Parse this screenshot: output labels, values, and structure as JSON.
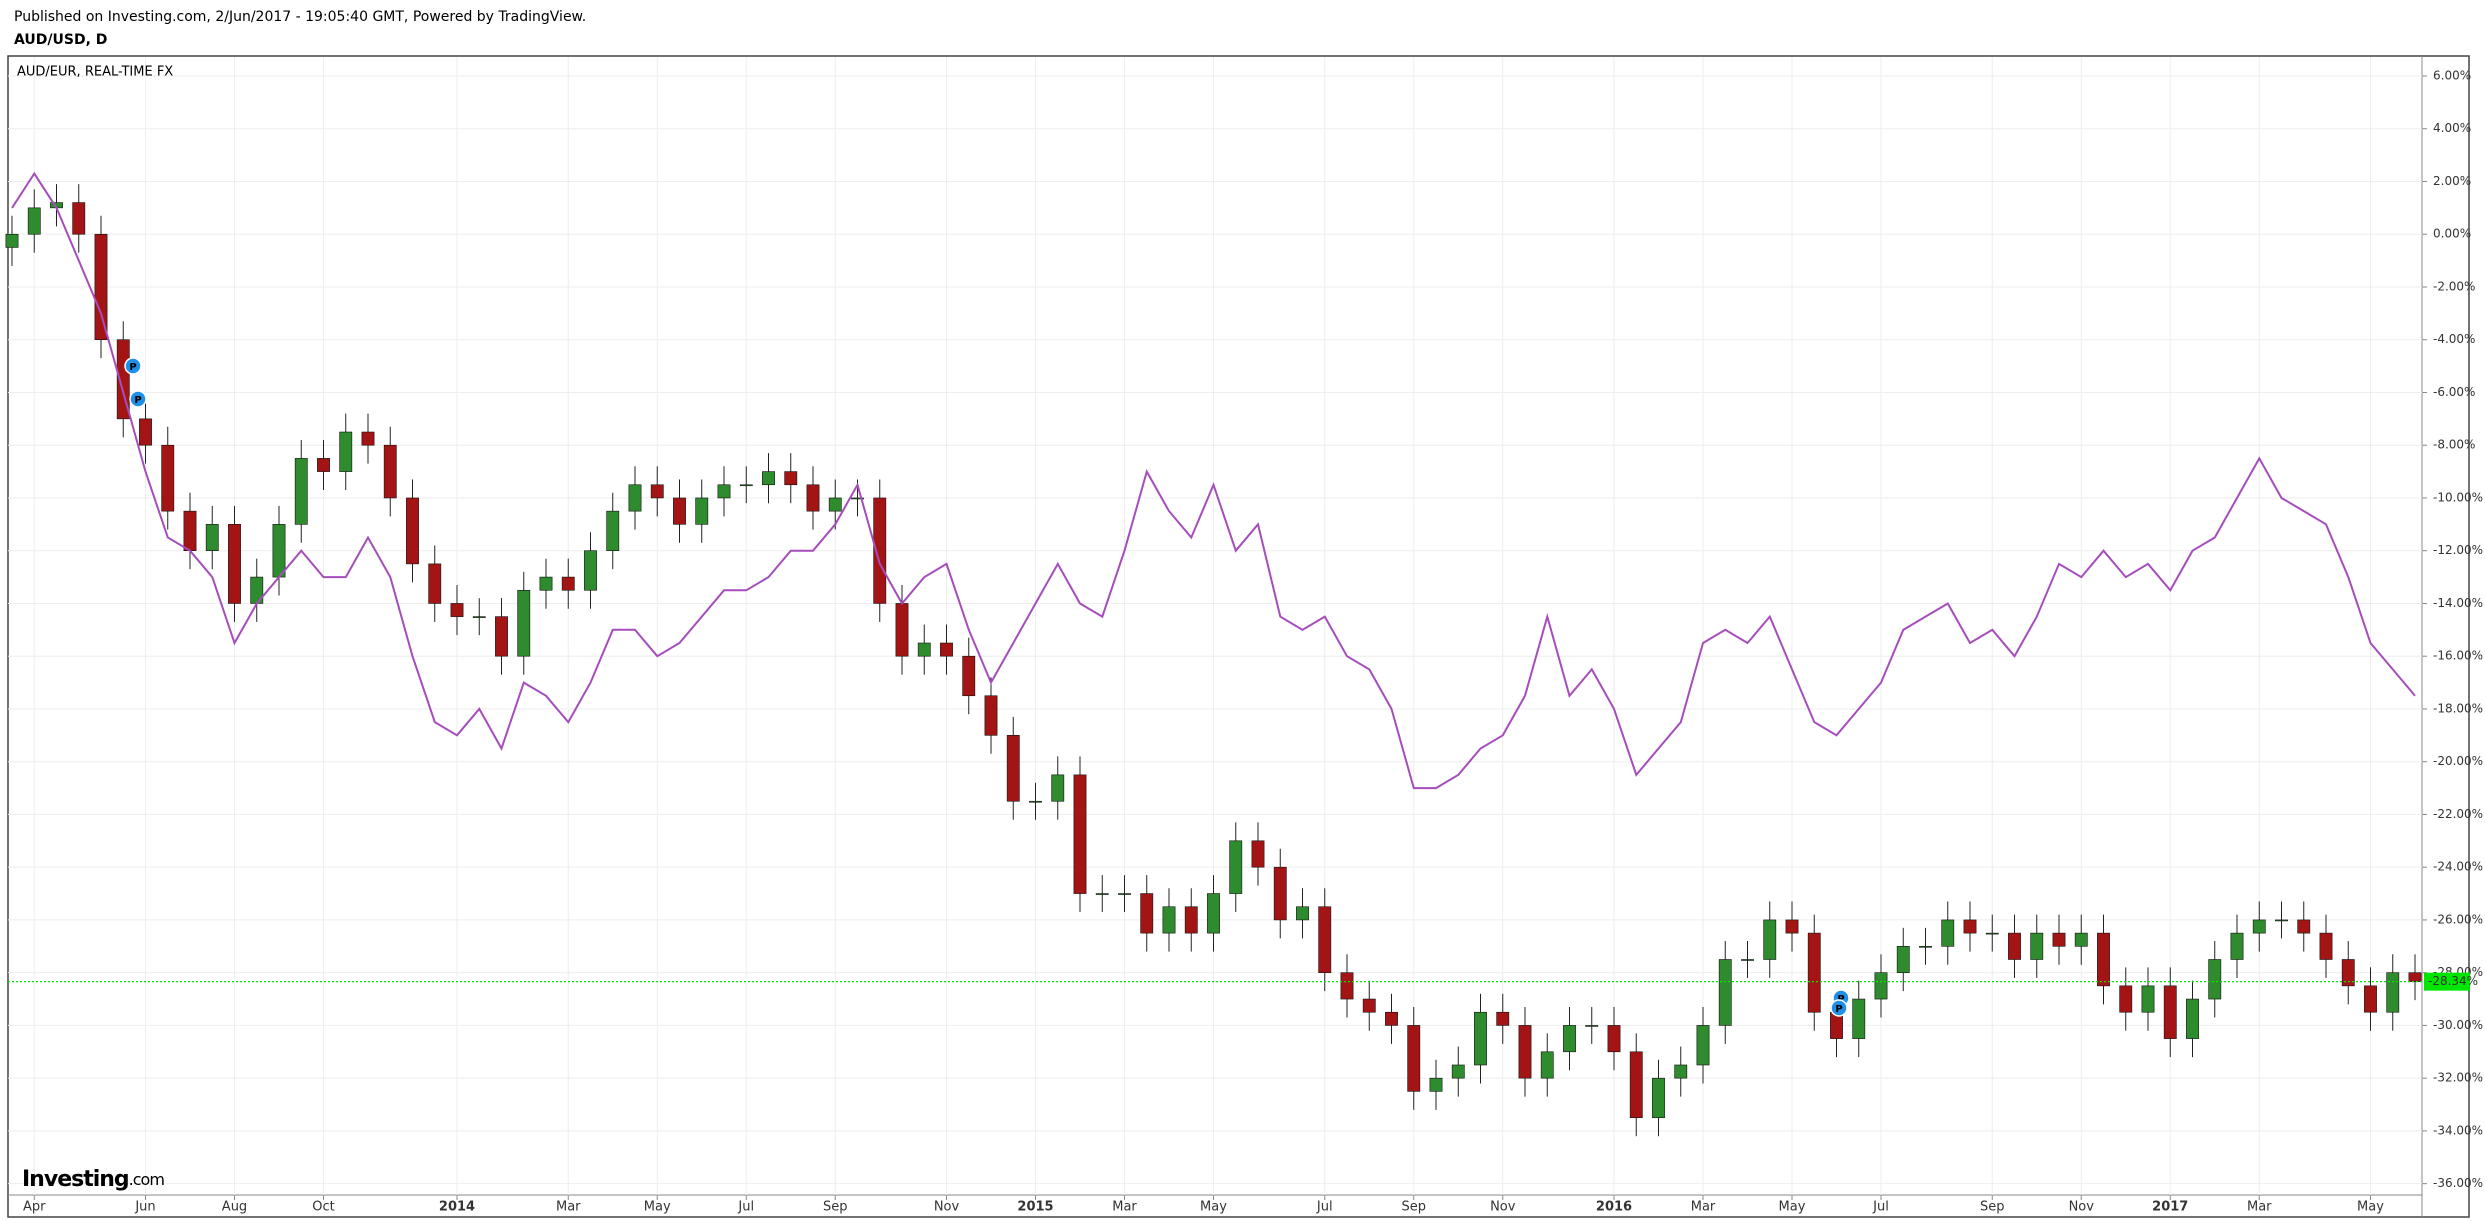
{
  "chart_data": {
    "type": "candlestick",
    "source": "Published on Investing.com, 2/Jun/2017 - 19:05:40 GMT, Powered by TradingView.",
    "title": "AUD/USD, D",
    "categories": [
      null,
      "Apr",
      null,
      null,
      null,
      null,
      "Jun",
      null,
      null,
      null,
      "Aug",
      null,
      null,
      null,
      "Oct",
      null,
      null,
      null,
      null,
      null,
      "2014",
      null,
      null,
      null,
      null,
      "Mar",
      null,
      null,
      null,
      "May",
      null,
      null,
      null,
      "Jul",
      null,
      null,
      null,
      "Sep",
      null,
      null,
      null,
      null,
      "Nov",
      null,
      null,
      null,
      "2015",
      null,
      null,
      null,
      "Mar",
      null,
      null,
      null,
      "May",
      null,
      null,
      null,
      null,
      "Jul",
      null,
      null,
      null,
      "Sep",
      null,
      null,
      null,
      "Nov",
      null,
      null,
      null,
      null,
      "2016",
      null,
      null,
      null,
      "Mar",
      null,
      null,
      null,
      "May",
      null,
      null,
      null,
      "Jul",
      null,
      null,
      null,
      null,
      "Sep",
      null,
      null,
      null,
      "Nov",
      null,
      null,
      null,
      "2017",
      null,
      null,
      null,
      "Mar",
      null,
      null,
      null,
      null,
      "May",
      null,
      null
    ],
    "candles": {
      "up_color": "#2e8b2e",
      "down_color": "#a31515",
      "wick_color": "#222222",
      "open": [
        -0.5,
        0,
        1,
        1.2,
        0,
        -4,
        -7,
        -8,
        -10.5,
        -12,
        -11,
        -14,
        -13,
        -11,
        -8.5,
        -9,
        -7.5,
        -8,
        -10,
        -12.5,
        -14,
        -14.5,
        -14.5,
        -16,
        -13.5,
        -13,
        -13.5,
        -12,
        -10.5,
        -9.5,
        -10,
        -11,
        -10,
        -9.5,
        -9.5,
        -9,
        -9.5,
        -10.5,
        -10,
        -10,
        -14,
        -16,
        -15.5,
        -16,
        -17.5,
        -19,
        -21.5,
        -21.5,
        -20.5,
        -25,
        -25,
        -25,
        -26.5,
        -25.5,
        -26.5,
        -25,
        -23,
        -24,
        -26,
        -25.5,
        -28,
        -29,
        -29.5,
        -30,
        -32.5,
        -32,
        -31.5,
        -29.5,
        -30,
        -32,
        -31,
        -30,
        -30,
        -31,
        -33.5,
        -32,
        -31.5,
        -30,
        -27.5,
        -27.5,
        -26,
        -26.5,
        -29.5,
        -30.5,
        -29,
        -28,
        -27,
        -27,
        -26,
        -26.5,
        -26.5,
        -27.5,
        -26.5,
        -27,
        -26.5,
        -28.5,
        -29.5,
        -28.5,
        -30.5,
        -29,
        -27.5,
        -26.5,
        -26,
        -26,
        -26.5,
        -27.5,
        -28.5,
        -29.5,
        -28
      ],
      "high": [
        0.7,
        1.7,
        1.9,
        1.9,
        0.7,
        -3.3,
        -6.3,
        -7.3,
        -9.8,
        -10.3,
        -10.3,
        -12.3,
        -10.3,
        -7.8,
        -7.8,
        -6.8,
        -6.8,
        -7.3,
        -9.3,
        -11.8,
        -13.3,
        -13.8,
        -13.8,
        -12.8,
        -12.3,
        -12.3,
        -11.3,
        -9.8,
        -8.8,
        -8.8,
        -9.3,
        -9.3,
        -8.8,
        -8.8,
        -8.3,
        -8.3,
        -8.8,
        -9.3,
        -9.3,
        -9.3,
        -13.3,
        -14.8,
        -14.8,
        -15.3,
        -16.8,
        -18.3,
        -20.8,
        -19.8,
        -19.8,
        -24.3,
        -24.3,
        -24.3,
        -24.8,
        -24.8,
        -24.3,
        -22.3,
        -22.3,
        -23.3,
        -24.8,
        -24.8,
        -27.3,
        -28.3,
        -28.8,
        -29.3,
        -31.3,
        -30.8,
        -28.8,
        -28.8,
        -29.3,
        -30.3,
        -29.3,
        -29.3,
        -29.3,
        -30.3,
        -31.3,
        -30.8,
        -29.3,
        -26.8,
        -26.8,
        -25.3,
        -25.3,
        -25.8,
        -28.8,
        -28.3,
        -27.3,
        -26.3,
        -26.3,
        -25.3,
        -25.3,
        -25.8,
        -25.8,
        -25.8,
        -25.8,
        -25.8,
        -25.8,
        -27.8,
        -27.8,
        -27.8,
        -28.3,
        -26.8,
        -25.8,
        -25.3,
        -25.3,
        -25.3,
        -25.8,
        -26.8,
        -27.8,
        -27.3,
        -27.3
      ],
      "low": [
        -1.2,
        -0.7,
        0.3,
        -0.7,
        -4.7,
        -7.7,
        -8.7,
        -11.2,
        -12.7,
        -12.7,
        -14.7,
        -14.7,
        -13.7,
        -11.7,
        -9.7,
        -9.7,
        -8.7,
        -10.7,
        -13.2,
        -14.7,
        -15.2,
        -15.2,
        -16.7,
        -16.7,
        -14.2,
        -14.2,
        -14.2,
        -12.7,
        -11.2,
        -10.7,
        -11.7,
        -11.7,
        -10.7,
        -10.2,
        -10.2,
        -10.2,
        -11.2,
        -11.2,
        -10.7,
        -14.7,
        -16.7,
        -16.7,
        -16.7,
        -18.2,
        -19.7,
        -22.2,
        -22.2,
        -22.2,
        -25.7,
        -25.7,
        -25.7,
        -27.2,
        -27.2,
        -27.2,
        -27.2,
        -25.7,
        -24.7,
        -26.7,
        -26.7,
        -28.7,
        -29.7,
        -30.2,
        -30.7,
        -33.2,
        -33.2,
        -32.7,
        -32.2,
        -30.7,
        -32.7,
        -32.7,
        -31.7,
        -30.7,
        -31.7,
        -34.2,
        -34.2,
        -32.7,
        -32.2,
        -30.7,
        -28.2,
        -28.2,
        -27.2,
        -30.2,
        -31.2,
        -31.2,
        -29.7,
        -28.7,
        -27.7,
        -27.7,
        -27.2,
        -27.2,
        -28.2,
        -28.2,
        -27.7,
        -27.7,
        -29.2,
        -30.2,
        -30.2,
        -31.2,
        -31.2,
        -29.7,
        -28.2,
        -27.2,
        -26.7,
        -27.2,
        -28.2,
        -29.2,
        -30.2,
        -30.2,
        -29.04
      ],
      "close": [
        0,
        1,
        1.2,
        0,
        -4,
        -7,
        -8,
        -10.5,
        -12,
        -11,
        -14,
        -13,
        -11,
        -8.5,
        -9,
        -7.5,
        -8,
        -10,
        -12.5,
        -14,
        -14.5,
        -14.5,
        -16,
        -13.5,
        -13,
        -13.5,
        -12,
        -10.5,
        -9.5,
        -10,
        -11,
        -10,
        -9.5,
        -9.5,
        -9,
        -9.5,
        -10.5,
        -10,
        -10,
        -14,
        -16,
        -15.5,
        -16,
        -17.5,
        -19,
        -21.5,
        -21.5,
        -20.5,
        -25,
        -25,
        -25,
        -26.5,
        -25.5,
        -26.5,
        -25,
        -23,
        -24,
        -26,
        -25.5,
        -28,
        -29,
        -29.5,
        -30,
        -32.5,
        -32,
        -31.5,
        -29.5,
        -30,
        -32,
        -31,
        -30,
        -30,
        -31,
        -33.5,
        -32,
        -31.5,
        -30,
        -27.5,
        -27.5,
        -26,
        -26.5,
        -29.5,
        -30.5,
        -29,
        -28,
        -27,
        -27,
        -26,
        -26.5,
        -26.5,
        -27.5,
        -26.5,
        -27,
        -26.5,
        -28.5,
        -29.5,
        -28.5,
        -30.5,
        -29,
        -27.5,
        -26.5,
        -26,
        -26,
        -26.5,
        -27.5,
        -28.5,
        -29.5,
        -28,
        -28.34
      ],
      "last_label": "-28.34%",
      "last_color": "#00e600"
    },
    "compare": {
      "name": "AUD/EUR, REAL-TIME FX",
      "color": "#a64dbc",
      "values": [
        1,
        2.3,
        1,
        -1,
        -3,
        -6,
        -9,
        -11.5,
        -12,
        -13,
        -15.5,
        -14,
        -13,
        -12,
        -13,
        -13,
        -11.5,
        -13,
        -16,
        -18.5,
        -19,
        -18,
        -19.5,
        -17,
        -17.5,
        -18.5,
        -17,
        -15,
        -15,
        -16,
        -15.5,
        -14.5,
        -13.5,
        -13.5,
        -13,
        -12,
        -12,
        -11,
        -9.5,
        -12.5,
        -14,
        -13,
        -12.5,
        -15,
        -17,
        -15.5,
        -14,
        -12.5,
        -14,
        -14.5,
        -12,
        -9,
        -10.5,
        -11.5,
        -9.5,
        -12,
        -11,
        -14.5,
        -15,
        -14.5,
        -16,
        -16.5,
        -18,
        -21,
        -21,
        -20.5,
        -19.5,
        -19,
        -17.5,
        -14.5,
        -17.5,
        -16.5,
        -18,
        -20.5,
        -19.5,
        -18.5,
        -15.5,
        -15,
        -15.5,
        -14.5,
        -16.5,
        -18.5,
        -19,
        -18,
        -17,
        -15,
        -14.5,
        -14,
        -15.5,
        -15,
        -16,
        -14.5,
        -12.5,
        -13,
        -12,
        -13,
        -12.5,
        -13.5,
        -12,
        -11.5,
        -10,
        -8.5,
        -10,
        -10.5,
        -11,
        -13,
        -15.5,
        -16.5,
        -17.5
      ]
    },
    "ylim": [
      -36.43,
      6.72
    ],
    "yticks": [
      {
        "value": 6,
        "label": "6.00%"
      },
      {
        "value": 4,
        "label": "4.00%"
      },
      {
        "value": 2,
        "label": "2.00%"
      },
      {
        "value": 0,
        "label": "0.00%"
      },
      {
        "value": -2,
        "label": "-2.00%"
      },
      {
        "value": -4,
        "label": "-4.00%"
      },
      {
        "value": -6,
        "label": "-6.00%"
      },
      {
        "value": -8,
        "label": "-8.00%"
      },
      {
        "value": -10,
        "label": "-10.00%"
      },
      {
        "value": -12,
        "label": "-12.00%"
      },
      {
        "value": -14,
        "label": "-14.00%"
      },
      {
        "value": -16,
        "label": "-16.00%"
      },
      {
        "value": -18,
        "label": "-18.00%"
      },
      {
        "value": -20,
        "label": "-20.00%"
      },
      {
        "value": -22,
        "label": "-22.00%"
      },
      {
        "value": -24,
        "label": "-24.00%"
      },
      {
        "value": -26,
        "label": "-26.00%"
      },
      {
        "value": -28,
        "label": "-28.00%"
      },
      {
        "value": -30,
        "label": "-30.00%"
      },
      {
        "value": -32,
        "label": "-32.00%"
      },
      {
        "value": -34,
        "label": "-34.00%"
      },
      {
        "value": -36,
        "label": "-36.00%"
      }
    ],
    "grid": true,
    "annotations": [
      "P",
      "P",
      "P",
      "P"
    ],
    "logo": {
      "text": "Investing",
      "suffix": ".com"
    }
  }
}
